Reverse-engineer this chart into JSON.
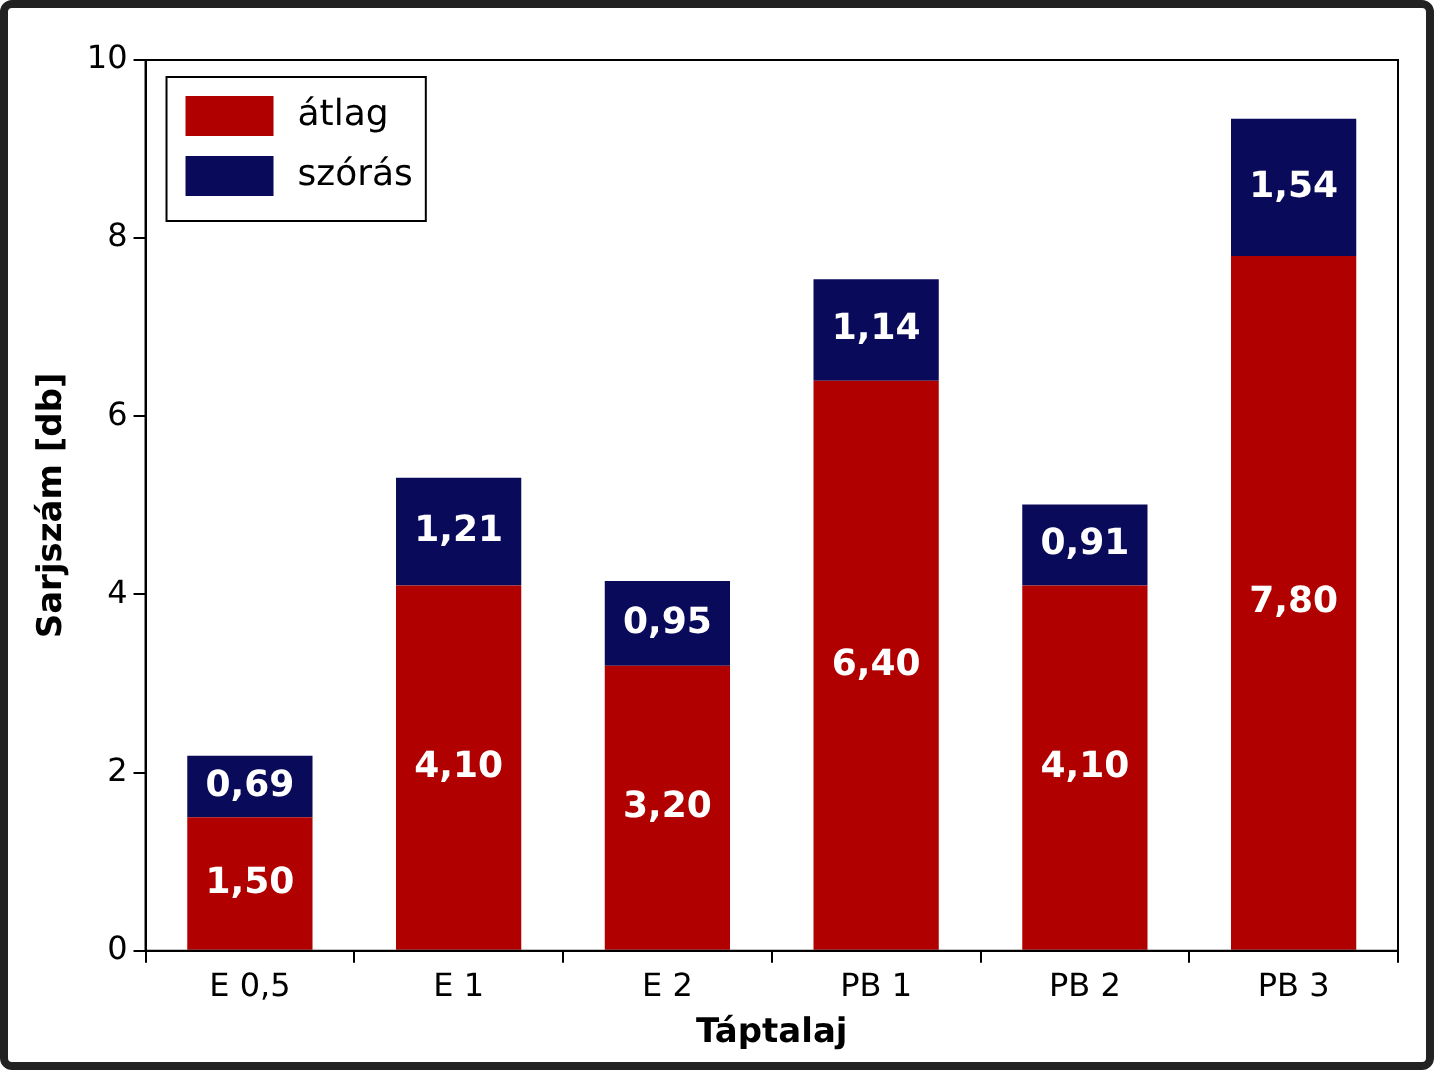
{
  "chart_data": {
    "type": "bar",
    "stacked": true,
    "xlabel": "Táptalaj",
    "ylabel": "Sarjszám [db]",
    "categories": [
      "E 0,5",
      "E 1",
      "E 2",
      "PB 1",
      "PB 2",
      "PB 3"
    ],
    "series": [
      {
        "name": "átlag",
        "color": "#b00000",
        "values": [
          1.5,
          4.1,
          3.2,
          6.4,
          4.1,
          7.8
        ],
        "value_labels": [
          "1,50",
          "4,10",
          "3,20",
          "6,40",
          "4,10",
          "7,80"
        ]
      },
      {
        "name": "szórás",
        "color": "#0a0a5a",
        "values": [
          0.69,
          1.21,
          0.95,
          1.14,
          0.91,
          1.54
        ],
        "value_labels": [
          "0,69",
          "1,21",
          "0,95",
          "1,14",
          "0,91",
          "1,54"
        ]
      }
    ],
    "ylim": [
      0,
      10
    ],
    "yticks": [
      0,
      2,
      4,
      6,
      8,
      10
    ],
    "grid": false,
    "legend": "top left"
  }
}
